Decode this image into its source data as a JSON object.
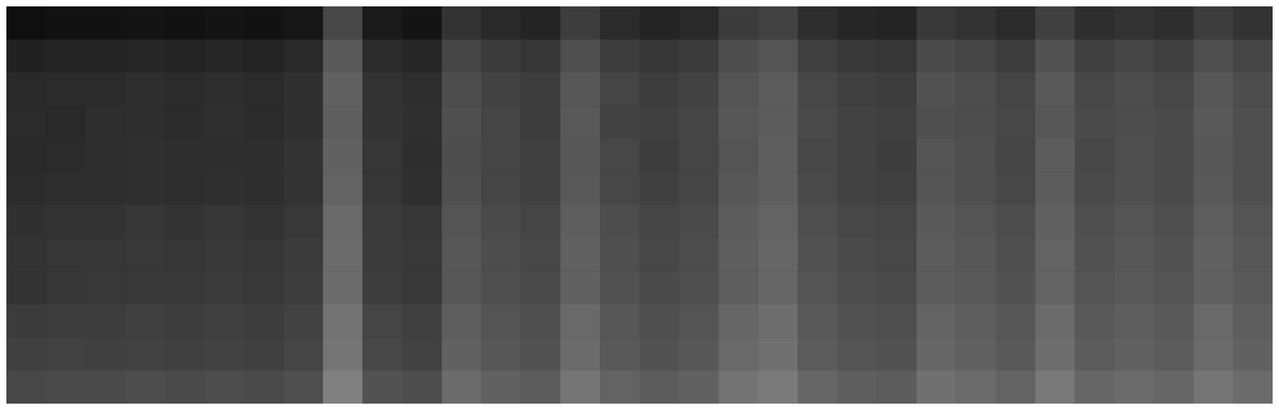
{
  "chart_data": {
    "type": "heatmap",
    "tick_labels": false,
    "color": "#ffffff",
    "cells": [
      [
        0.06,
        0.07,
        0.07,
        0.08,
        0.07,
        0.08,
        0.07,
        0.09,
        0.28,
        0.1,
        0.08,
        0.2,
        0.16,
        0.14,
        0.24,
        0.17,
        0.14,
        0.16,
        0.23,
        0.26,
        0.18,
        0.15,
        0.14,
        0.22,
        0.2,
        0.17,
        0.25,
        0.18,
        0.2,
        0.18,
        0.24,
        0.2
      ],
      [
        0.13,
        0.14,
        0.14,
        0.15,
        0.14,
        0.15,
        0.14,
        0.16,
        0.35,
        0.17,
        0.15,
        0.27,
        0.23,
        0.21,
        0.31,
        0.24,
        0.21,
        0.23,
        0.3,
        0.33,
        0.25,
        0.22,
        0.21,
        0.29,
        0.27,
        0.24,
        0.32,
        0.25,
        0.27,
        0.25,
        0.31,
        0.27
      ],
      [
        0.16,
        0.17,
        0.17,
        0.18,
        0.17,
        0.18,
        0.17,
        0.19,
        0.38,
        0.2,
        0.18,
        0.3,
        0.26,
        0.24,
        0.34,
        0.27,
        0.24,
        0.26,
        0.33,
        0.36,
        0.28,
        0.25,
        0.24,
        0.32,
        0.3,
        0.27,
        0.35,
        0.28,
        0.3,
        0.28,
        0.34,
        0.3
      ],
      [
        0.17,
        0.16,
        0.18,
        0.18,
        0.17,
        0.19,
        0.17,
        0.19,
        0.37,
        0.2,
        0.19,
        0.31,
        0.27,
        0.24,
        0.35,
        0.26,
        0.25,
        0.27,
        0.34,
        0.36,
        0.29,
        0.26,
        0.25,
        0.31,
        0.3,
        0.28,
        0.34,
        0.29,
        0.3,
        0.29,
        0.35,
        0.31
      ],
      [
        0.16,
        0.17,
        0.18,
        0.19,
        0.18,
        0.18,
        0.18,
        0.2,
        0.38,
        0.21,
        0.18,
        0.3,
        0.27,
        0.25,
        0.34,
        0.28,
        0.24,
        0.27,
        0.33,
        0.37,
        0.28,
        0.26,
        0.24,
        0.33,
        0.31,
        0.27,
        0.36,
        0.28,
        0.31,
        0.29,
        0.34,
        0.31
      ],
      [
        0.17,
        0.18,
        0.18,
        0.19,
        0.18,
        0.19,
        0.18,
        0.2,
        0.39,
        0.21,
        0.19,
        0.31,
        0.27,
        0.25,
        0.35,
        0.28,
        0.25,
        0.27,
        0.34,
        0.37,
        0.29,
        0.26,
        0.25,
        0.33,
        0.31,
        0.28,
        0.36,
        0.29,
        0.31,
        0.29,
        0.35,
        0.31
      ],
      [
        0.19,
        0.2,
        0.2,
        0.21,
        0.2,
        0.21,
        0.2,
        0.22,
        0.41,
        0.23,
        0.21,
        0.33,
        0.29,
        0.27,
        0.37,
        0.3,
        0.27,
        0.29,
        0.36,
        0.39,
        0.31,
        0.28,
        0.27,
        0.35,
        0.33,
        0.3,
        0.38,
        0.31,
        0.33,
        0.31,
        0.37,
        0.33
      ],
      [
        0.2,
        0.21,
        0.21,
        0.22,
        0.21,
        0.22,
        0.21,
        0.23,
        0.42,
        0.23,
        0.22,
        0.34,
        0.3,
        0.28,
        0.38,
        0.31,
        0.28,
        0.3,
        0.37,
        0.4,
        0.32,
        0.29,
        0.28,
        0.36,
        0.34,
        0.31,
        0.39,
        0.32,
        0.34,
        0.32,
        0.38,
        0.34
      ],
      [
        0.2,
        0.21,
        0.22,
        0.22,
        0.22,
        0.23,
        0.22,
        0.24,
        0.42,
        0.24,
        0.22,
        0.34,
        0.31,
        0.29,
        0.38,
        0.32,
        0.29,
        0.31,
        0.37,
        0.4,
        0.33,
        0.3,
        0.29,
        0.36,
        0.35,
        0.32,
        0.39,
        0.33,
        0.35,
        0.33,
        0.38,
        0.35
      ],
      [
        0.23,
        0.24,
        0.24,
        0.25,
        0.24,
        0.25,
        0.24,
        0.26,
        0.45,
        0.27,
        0.25,
        0.37,
        0.33,
        0.31,
        0.41,
        0.34,
        0.31,
        0.33,
        0.4,
        0.43,
        0.35,
        0.32,
        0.31,
        0.39,
        0.37,
        0.34,
        0.42,
        0.35,
        0.37,
        0.35,
        0.41,
        0.37
      ],
      [
        0.25,
        0.26,
        0.25,
        0.26,
        0.25,
        0.26,
        0.25,
        0.27,
        0.46,
        0.28,
        0.26,
        0.38,
        0.34,
        0.32,
        0.42,
        0.35,
        0.32,
        0.34,
        0.41,
        0.44,
        0.36,
        0.33,
        0.32,
        0.4,
        0.38,
        0.35,
        0.43,
        0.36,
        0.38,
        0.36,
        0.42,
        0.38
      ],
      [
        0.28,
        0.29,
        0.29,
        0.3,
        0.29,
        0.3,
        0.29,
        0.31,
        0.5,
        0.32,
        0.3,
        0.42,
        0.38,
        0.36,
        0.46,
        0.39,
        0.36,
        0.38,
        0.45,
        0.48,
        0.4,
        0.37,
        0.36,
        0.44,
        0.42,
        0.39,
        0.47,
        0.4,
        0.42,
        0.4,
        0.46,
        0.42
      ]
    ]
  }
}
